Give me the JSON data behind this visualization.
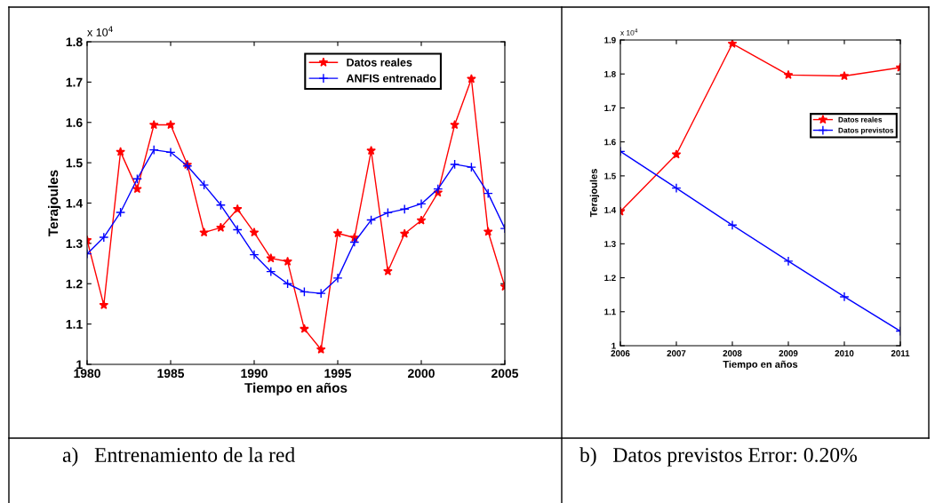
{
  "chart_data": [
    {
      "type": "line",
      "xlabel": "Tiempo en años",
      "ylabel": "Terajoules",
      "x": [
        1980,
        1981,
        1982,
        1983,
        1984,
        1985,
        1986,
        1987,
        1988,
        1989,
        1990,
        1991,
        1992,
        1993,
        1994,
        1995,
        1996,
        1997,
        1998,
        1999,
        2000,
        2001,
        2002,
        2003,
        2004,
        2005
      ],
      "series": [
        {
          "name": "Datos reales",
          "color": "#ff0000",
          "marker": "star",
          "values": [
            1.308,
            1.147,
            1.527,
            1.435,
            1.594,
            1.594,
            1.495,
            1.327,
            1.339,
            1.385,
            1.327,
            1.263,
            1.255,
            1.088,
            1.037,
            1.325,
            1.314,
            1.53,
            1.231,
            1.324,
            1.357,
            1.426,
            1.594,
            1.708,
            1.329,
            1.193
          ]
        },
        {
          "name": "ANFIS entrenado",
          "color": "#0000ff",
          "marker": "cross",
          "values": [
            1.274,
            1.315,
            1.377,
            1.46,
            1.532,
            1.526,
            1.492,
            1.445,
            1.395,
            1.334,
            1.272,
            1.23,
            1.2,
            1.18,
            1.176,
            1.214,
            1.303,
            1.358,
            1.376,
            1.385,
            1.398,
            1.435,
            1.496,
            1.489,
            1.424,
            1.337
          ]
        }
      ],
      "xlim": [
        1980,
        2005
      ],
      "xticks": [
        1980,
        1985,
        1990,
        1995,
        2000,
        2005
      ],
      "ylim": [
        1.0,
        1.8
      ],
      "yticks": [
        {
          "value": 1.0,
          "label": "1"
        },
        1.1,
        1.2,
        1.3,
        1.4,
        1.5,
        1.6,
        1.7,
        1.8
      ],
      "line_style": "solid",
      "legend": "top right",
      "annotations": [
        "x 10$^{4}$",
        "a)   Entrenamiento de la red"
      ]
    },
    {
      "type": "line",
      "xlabel": "Tiempo en años",
      "ylabel": "Terajoules",
      "x": [
        2006,
        2007,
        2008,
        2009,
        2010,
        2011
      ],
      "series": [
        {
          "name": "Datos reales",
          "color": "#ff0000",
          "marker": "star",
          "values": [
            1.395,
            1.563,
            1.889,
            1.797,
            1.794,
            1.819
          ]
        },
        {
          "name": "Datos previstos",
          "color": "#0000ff",
          "marker": "cross",
          "values": [
            1.572,
            1.464,
            1.355,
            1.249,
            1.144,
            1.043
          ]
        }
      ],
      "xlim": [
        2006,
        2011
      ],
      "xticks": [
        2006,
        2007,
        2008,
        2009,
        2010,
        2011
      ],
      "ylim": [
        1.0,
        1.9
      ],
      "yticks": [
        {
          "value": 1.0,
          "label": "1"
        },
        1.1,
        1.2,
        1.3,
        1.4,
        1.5,
        1.6,
        1.7,
        1.8,
        1.9
      ],
      "line_style": "solid",
      "legend": "right",
      "annotations": [
        "x 10$^{4}$",
        "b)   Datos previstos Error: 0.20%"
      ]
    }
  ]
}
